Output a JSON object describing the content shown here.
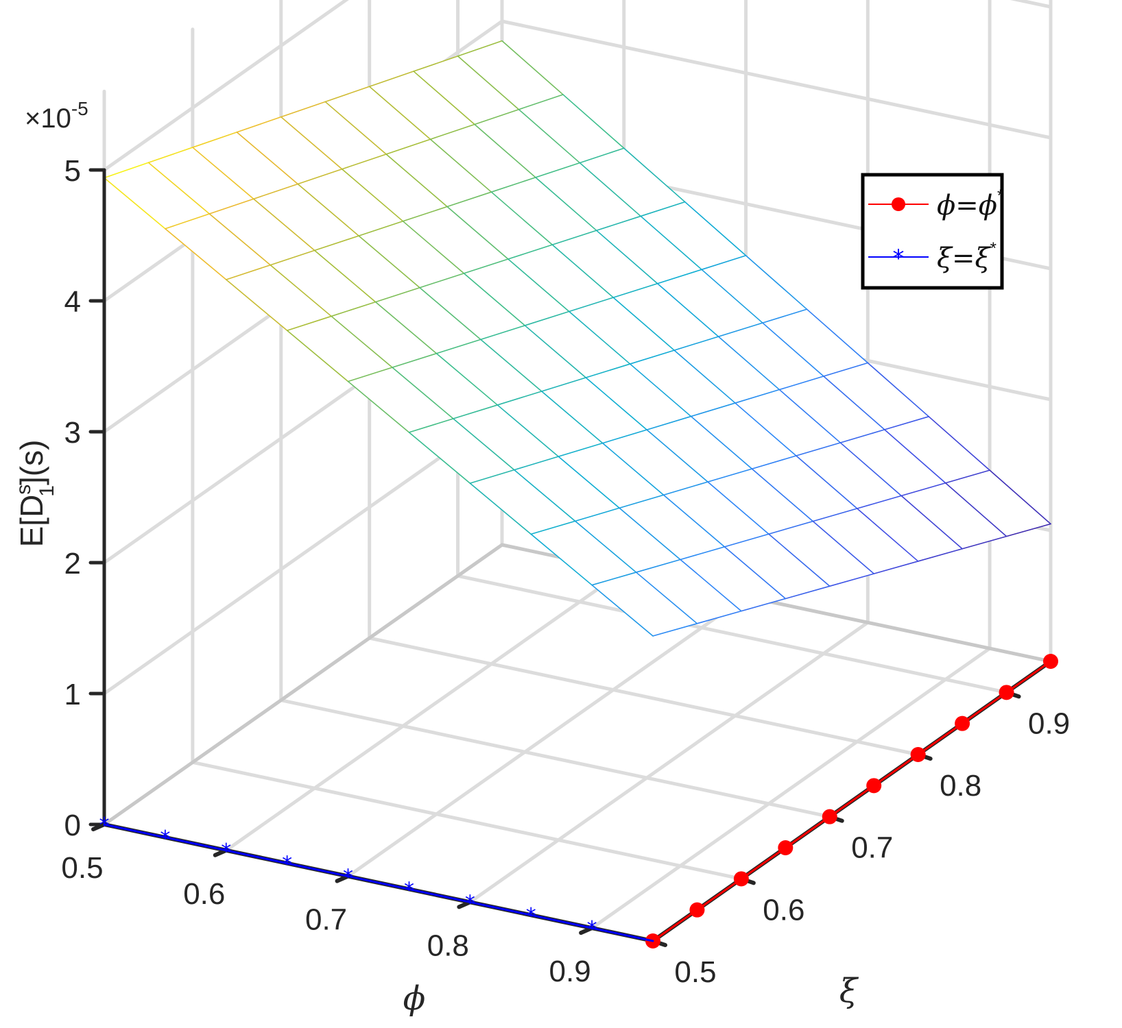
{
  "chart_data": {
    "type": "surface",
    "title": "",
    "xlabel": "ϕ",
    "ylabel": "ξ",
    "zlabel": {
      "prefix": "E[D",
      "sup": "s",
      "sub": "1",
      "suffix": "](s)"
    },
    "z_multiplier": {
      "base": "×10",
      "exp": "-5"
    },
    "xlim": [
      0.5,
      0.95
    ],
    "ylim": [
      0.5,
      0.95
    ],
    "zlim": [
      0,
      5
    ],
    "x_ticks": [
      "0.5",
      "0.6",
      "0.7",
      "0.8",
      "0.9"
    ],
    "y_ticks": [
      "0.5",
      "0.6",
      "0.7",
      "0.8",
      "0.9"
    ],
    "z_ticks": [
      "0",
      "1",
      "2",
      "3",
      "4",
      "5"
    ],
    "x": [
      0.5,
      0.55,
      0.6,
      0.65,
      0.7,
      0.75,
      0.8,
      0.85,
      0.9,
      0.95
    ],
    "y": [
      0.5,
      0.55,
      0.6,
      0.65,
      0.7,
      0.75,
      0.8,
      0.85,
      0.9,
      0.95
    ],
    "z_corners": {
      "x0.5_y0.5": 4.94,
      "x0.5_y0.95": 3.85,
      "x0.95_y0.5": 2.33,
      "x0.95_y0.95": 1.05
    },
    "grid": true,
    "colormap": "parula",
    "legend_position": "top-right",
    "series": [
      {
        "name": "ϕ=ϕ*",
        "line": "phi fixed at 0.95, xi varies",
        "color": "#ff0000",
        "marker": "circle"
      },
      {
        "name": "ξ=ξ*",
        "line": "xi fixed at 0.95, phi varies",
        "color": "#0000ff",
        "marker": "asterisk"
      }
    ]
  },
  "legend": {
    "items": [
      {
        "sym": "ϕ",
        "eq": "=",
        "sym2": "ϕ",
        "sup": "*"
      },
      {
        "sym": "ξ",
        "eq": "=",
        "sym2": "ξ",
        "sup": "*"
      }
    ]
  }
}
